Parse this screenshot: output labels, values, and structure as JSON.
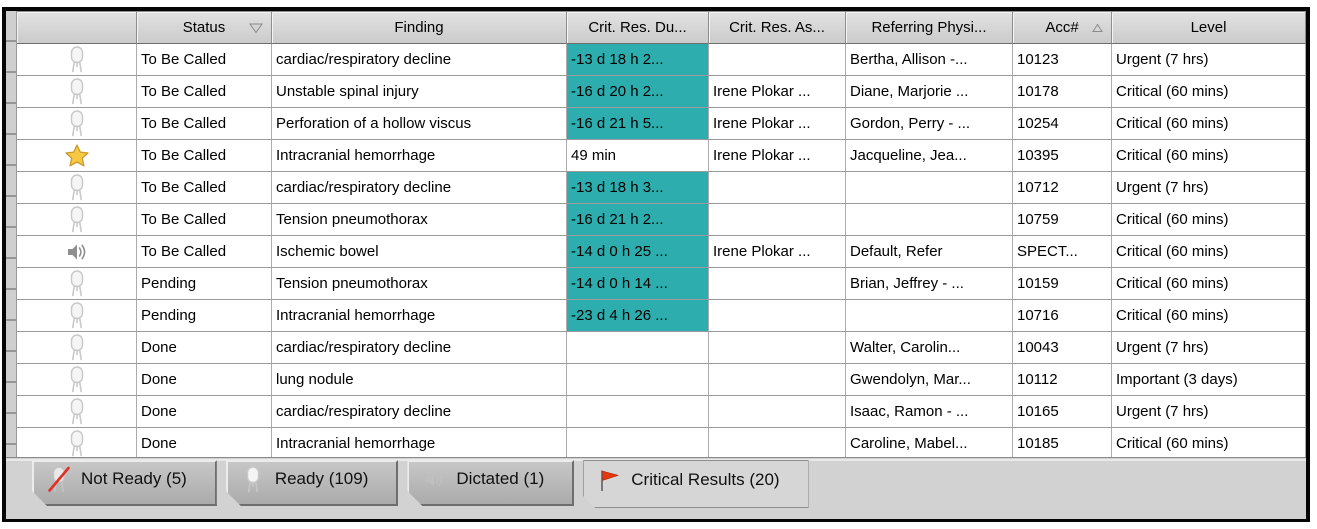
{
  "colors": {
    "due_highlight_bg": "#2DADAD",
    "flag_red": "#E7380D",
    "star_gold": "#F7C843",
    "slash_red": "#E03022",
    "speaker_gray": "#8F8F8F",
    "faint_icon_gray": "#C8C8C8"
  },
  "table": {
    "columns": [
      {
        "key": "icon",
        "label": "",
        "sort": ""
      },
      {
        "key": "status",
        "label": "Status",
        "sort": "desc"
      },
      {
        "key": "finding",
        "label": "Finding",
        "sort": ""
      },
      {
        "key": "crit_res_due",
        "label": "Crit. Res. Du...",
        "sort": ""
      },
      {
        "key": "crit_res_as",
        "label": "Crit. Res. As...",
        "sort": ""
      },
      {
        "key": "referring",
        "label": "Referring Physi...",
        "sort": ""
      },
      {
        "key": "acc",
        "label": "Acc#",
        "sort": "asc"
      },
      {
        "key": "level",
        "label": "Level",
        "sort": ""
      }
    ],
    "rows": [
      {
        "icon": "microphone",
        "status": "To Be Called",
        "finding": "cardiac/respiratory decline",
        "crit_res_due": "-13 d 18 h 2...",
        "due_highlight": true,
        "crit_res_as": "",
        "referring": "Bertha, Allison -...",
        "acc": "10123",
        "level": "Urgent (7 hrs)"
      },
      {
        "icon": "microphone",
        "status": "To Be Called",
        "finding": "Unstable spinal injury",
        "crit_res_due": "-16 d 20 h 2...",
        "due_highlight": true,
        "crit_res_as": "Irene Plokar ...",
        "referring": "Diane, Marjorie ...",
        "acc": "10178",
        "level": "Critical (60 mins)"
      },
      {
        "icon": "microphone",
        "status": "To Be Called",
        "finding": "Perforation of a hollow viscus",
        "crit_res_due": "-16 d 21 h 5...",
        "due_highlight": true,
        "crit_res_as": "Irene Plokar ...",
        "referring": "Gordon, Perry - ...",
        "acc": "10254",
        "level": "Critical (60 mins)"
      },
      {
        "icon": "star",
        "status": "To Be Called",
        "finding": "Intracranial hemorrhage",
        "crit_res_due": "49 min",
        "due_highlight": false,
        "crit_res_as": "Irene Plokar ...",
        "referring": "Jacqueline, Jea...",
        "acc": "10395",
        "level": "Critical (60 mins)"
      },
      {
        "icon": "microphone",
        "status": "To Be Called",
        "finding": "cardiac/respiratory decline",
        "crit_res_due": "-13 d 18 h 3...",
        "due_highlight": true,
        "crit_res_as": "",
        "referring": "",
        "acc": "10712",
        "level": "Urgent (7 hrs)"
      },
      {
        "icon": "microphone",
        "status": "To Be Called",
        "finding": "Tension pneumothorax",
        "crit_res_due": "-16 d 21 h 2...",
        "due_highlight": true,
        "crit_res_as": "",
        "referring": "",
        "acc": "10759",
        "level": "Critical (60 mins)"
      },
      {
        "icon": "speaker",
        "status": "To Be Called",
        "finding": "Ischemic bowel",
        "crit_res_due": "-14 d 0 h 25 ...",
        "due_highlight": true,
        "crit_res_as": "Irene Plokar ...",
        "referring": "Default, Refer",
        "acc": "SPECT...",
        "level": "Critical (60 mins)"
      },
      {
        "icon": "microphone",
        "status": "Pending",
        "finding": "Tension pneumothorax",
        "crit_res_due": "-14 d 0 h 14 ...",
        "due_highlight": true,
        "crit_res_as": "",
        "referring": "Brian, Jeffrey - ...",
        "acc": "10159",
        "level": "Critical (60 mins)"
      },
      {
        "icon": "microphone",
        "status": "Pending",
        "finding": "Intracranial hemorrhage",
        "crit_res_due": "-23 d 4 h 26 ...",
        "due_highlight": true,
        "crit_res_as": "",
        "referring": "",
        "acc": "10716",
        "level": "Critical (60 mins)"
      },
      {
        "icon": "microphone",
        "status": "Done",
        "finding": "cardiac/respiratory decline",
        "crit_res_due": "",
        "due_highlight": false,
        "crit_res_as": "",
        "referring": "Walter, Carolin...",
        "acc": "10043",
        "level": "Urgent (7 hrs)"
      },
      {
        "icon": "microphone",
        "status": "Done",
        "finding": "lung nodule",
        "crit_res_due": "",
        "due_highlight": false,
        "crit_res_as": "",
        "referring": "Gwendolyn, Mar...",
        "acc": "10112",
        "level": "Important (3 days)"
      },
      {
        "icon": "microphone",
        "status": "Done",
        "finding": "cardiac/respiratory decline",
        "crit_res_due": "",
        "due_highlight": false,
        "crit_res_as": "",
        "referring": "Isaac, Ramon - ...",
        "acc": "10165",
        "level": "Urgent (7 hrs)"
      },
      {
        "icon": "microphone",
        "status": "Done",
        "finding": "Intracranial hemorrhage",
        "crit_res_due": "",
        "due_highlight": false,
        "crit_res_as": "",
        "referring": "Caroline, Mabel...",
        "acc": "10185",
        "level": "Critical (60 mins)"
      },
      {
        "icon": "microphone",
        "status": "",
        "finding": "",
        "crit_res_due": "",
        "due_highlight": false,
        "crit_res_as": "",
        "referring": "",
        "acc": "",
        "level": "",
        "partial": true
      }
    ]
  },
  "tabs": [
    {
      "label": "Not Ready (5)",
      "icon": "microphone-slash",
      "active": false
    },
    {
      "label": "Ready (109)",
      "icon": "microphone",
      "active": false
    },
    {
      "label": "Dictated (1)",
      "icon": "speaker-faint",
      "active": false
    },
    {
      "label": "Critical Results (20)",
      "icon": "flag",
      "active": true
    }
  ]
}
